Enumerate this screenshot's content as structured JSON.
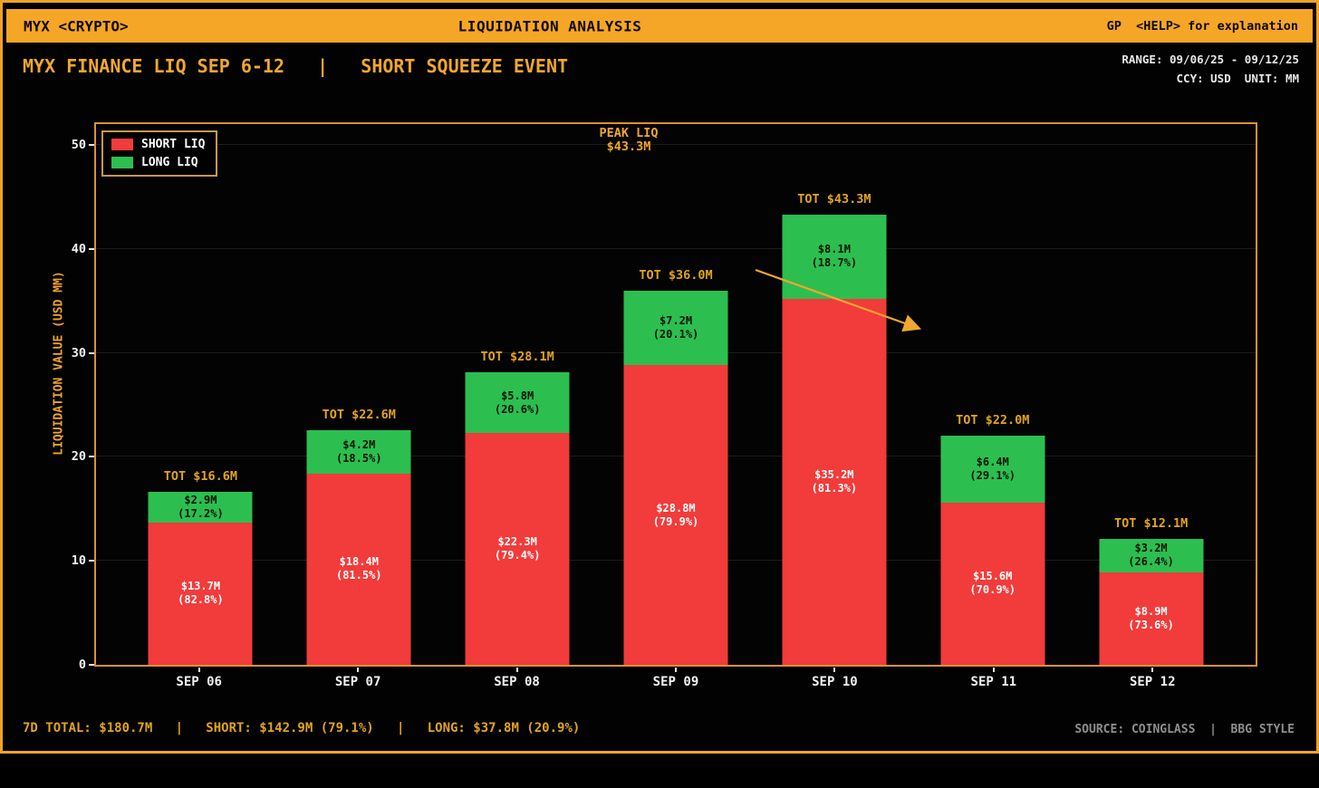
{
  "top_bar": {
    "left": "MYX <CRYPTO>",
    "center": "LIQUIDATION ANALYSIS",
    "right": "GP  <HELP> for explanation"
  },
  "header": {
    "title": "MYX FINANCE LIQ SEP 6-12   |   SHORT SQUEEZE EVENT",
    "range": "RANGE: 09/06/25 - 09/12/25",
    "ccy": "CCY: USD  UNIT: MM"
  },
  "colors": {
    "accent_orange": "#f5a626",
    "gold_label": "#e2a41d",
    "short_red": "#f23b3b",
    "long_green": "#2dbe50",
    "background": "#000000",
    "tick_text": "#f2f2f2",
    "source_gray": "#8f8f8f"
  },
  "chart_data": {
    "type": "bar",
    "stacked": true,
    "categories": [
      "SEP 06",
      "SEP 07",
      "SEP 08",
      "SEP 09",
      "SEP 10",
      "SEP 11",
      "SEP 12"
    ],
    "series": [
      {
        "name": "SHORT LIQ",
        "color": "#f23b3b",
        "label_color": "#ffffff",
        "values": [
          13.7,
          18.4,
          22.3,
          28.8,
          35.2,
          15.6,
          8.9
        ],
        "labels": [
          "$13.7M",
          "$18.4M",
          "$22.3M",
          "$28.8M",
          "$35.2M",
          "$15.6M",
          "$8.9M"
        ],
        "pcts": [
          "(82.8%)",
          "(81.5%)",
          "(79.4%)",
          "(79.9%)",
          "(81.3%)",
          "(70.9%)",
          "(73.6%)"
        ]
      },
      {
        "name": "LONG LIQ",
        "color": "#2dbe50",
        "label_color": "#001500",
        "values": [
          2.9,
          4.2,
          5.8,
          7.2,
          8.1,
          6.4,
          3.2
        ],
        "labels": [
          "$2.9M",
          "$4.2M",
          "$5.8M",
          "$7.2M",
          "$8.1M",
          "$6.4M",
          "$3.2M"
        ],
        "pcts": [
          "(17.2%)",
          "(18.5%)",
          "(20.6%)",
          "(20.1%)",
          "(18.7%)",
          "(29.1%)",
          "(26.4%)"
        ]
      }
    ],
    "totals": [
      16.6,
      22.6,
      28.1,
      36.0,
      43.3,
      22.0,
      12.1
    ],
    "total_labels": [
      "TOT $16.6M",
      "TOT $22.6M",
      "TOT $28.1M",
      "TOT $36.0M",
      "TOT $43.3M",
      "TOT $22.0M",
      "TOT $12.1M"
    ],
    "ylabel": "LIQUIDATION VALUE (USD MM)",
    "xlabel": "",
    "ylim": [
      0,
      52
    ],
    "yticks": [
      0,
      10,
      20,
      30,
      40,
      50
    ],
    "grid": true,
    "legend_position": "upper-left",
    "annotation": {
      "line1": "PEAK LIQ",
      "line2": "$43.3M",
      "points_to": "SEP 10"
    }
  },
  "footer": {
    "stats": "7D TOTAL: $180.7M   |   SHORT: $142.9M (79.1%)   |   LONG: $37.8M (20.9%)",
    "source": "SOURCE: COINGLASS  |  BBG STYLE"
  }
}
